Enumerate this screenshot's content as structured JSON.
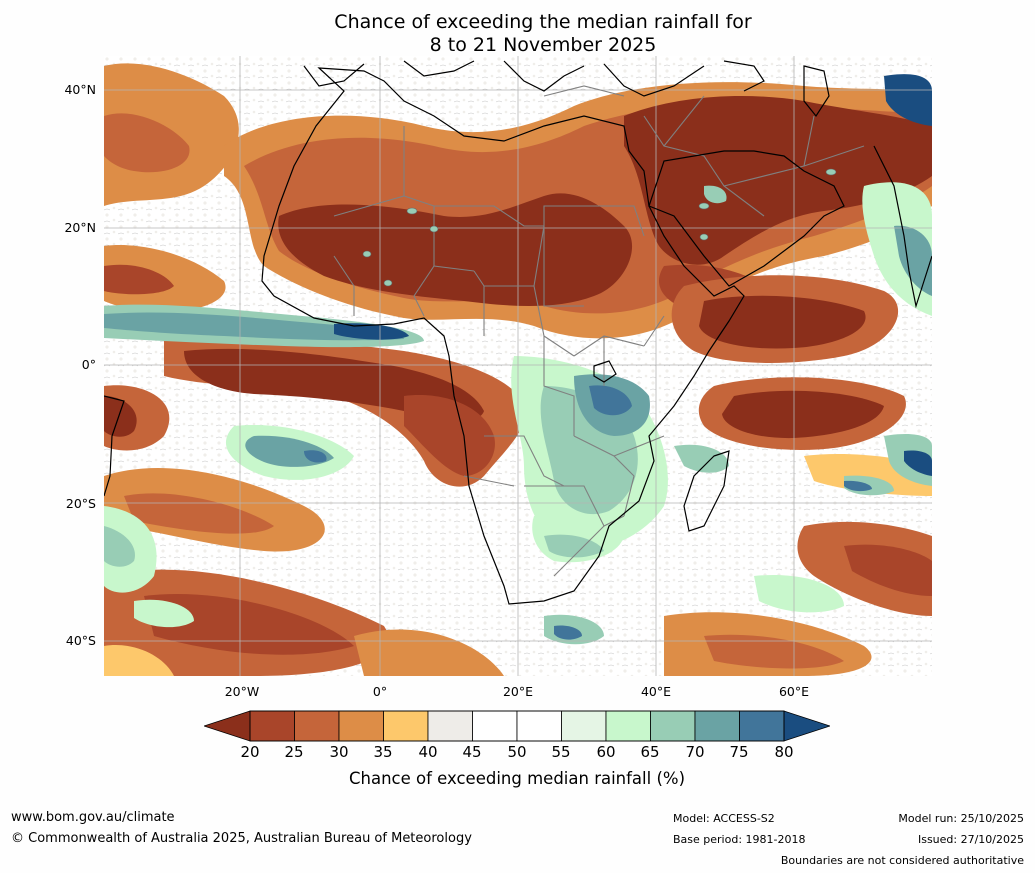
{
  "title": {
    "line1": "Chance of exceeding the median rainfall for",
    "line2": "8 to 21 November 2025"
  },
  "map": {
    "lat_labels": [
      "40°N",
      "20°N",
      "0°",
      "20°S",
      "40°S"
    ],
    "lon_labels": [
      "20°W",
      "0°",
      "20°E",
      "40°E",
      "60°E"
    ],
    "region": "Africa and surrounding oceans",
    "colors": {
      "p20": "#8b2f1b",
      "p25": "#a9452a",
      "p30": "#c5653a",
      "p35": "#dd8d47",
      "p40": "#fdc86b",
      "p45": "#eeece8",
      "p50": "#ffffff",
      "p60": "#e5f5e5",
      "p65": "#c8f7cc",
      "p70": "#98cdb5",
      "p75": "#6aa3a4",
      "p80": "#41759a",
      "p85": "#1a4d80",
      "land_outline": "#000000",
      "borders": "#808080",
      "gridlines": "#b4b4b4"
    }
  },
  "colorbar": {
    "ticks": [
      "20",
      "25",
      "30",
      "35",
      "40",
      "45",
      "50",
      "55",
      "60",
      "65",
      "70",
      "75",
      "80"
    ],
    "colors": [
      "#8b2f1b",
      "#a9452a",
      "#c5653a",
      "#dd8d47",
      "#fdc86b",
      "#eeece8",
      "#ffffff",
      "#ffffff",
      "#e5f5e5",
      "#c8f7cc",
      "#98cdb5",
      "#6aa3a4",
      "#41759a",
      "#1a4d80"
    ],
    "label": "Chance of exceeding median rainfall (%)"
  },
  "footer": {
    "website": "www.bom.gov.au/climate",
    "copyright": "© Commonwealth of Australia 2025, Australian Bureau of Meteorology",
    "model": "Model: ACCESS-S2",
    "base_period": "Base period: 1981-2018",
    "model_run": "Model run: 25/10/2025",
    "issued": "Issued: 27/10/2025",
    "disclaimer": "Boundaries are not considered authoritative"
  }
}
